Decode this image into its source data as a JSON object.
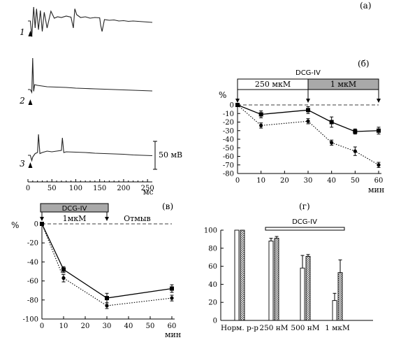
{
  "chart_data": [
    {
      "id": "a",
      "panel_label": "(а)",
      "type": "line",
      "xlabel": "мс",
      "xticks": [
        0,
        50,
        100,
        150,
        200,
        250
      ],
      "scale_bar_label": "50 мВ",
      "traces": [
        {
          "name": "1",
          "x": [
            0,
            5,
            8,
            12,
            15,
            18,
            22,
            26,
            30,
            34,
            40,
            48,
            55,
            62,
            70,
            80,
            90,
            95,
            98,
            102,
            110,
            120,
            130,
            140,
            150,
            152,
            155,
            160,
            170,
            180,
            190,
            200,
            210,
            220,
            230,
            240,
            250,
            260
          ],
          "y": [
            0,
            0,
            -45,
            40,
            -20,
            35,
            -25,
            30,
            -30,
            25,
            -20,
            28,
            8,
            12,
            10,
            14,
            11,
            -20,
            35,
            18,
            10,
            12,
            8,
            10,
            9,
            -12,
            -30,
            4,
            2,
            3,
            0,
            1,
            -1,
            0,
            -1,
            -2,
            -3,
            -4
          ]
        },
        {
          "name": "2",
          "x": [
            0,
            5,
            8,
            10,
            12,
            14,
            20,
            30,
            40,
            60,
            80,
            100,
            120,
            140,
            160,
            180,
            200,
            220,
            240,
            260
          ],
          "y": [
            0,
            0,
            -8,
            90,
            -5,
            14,
            12,
            10,
            8,
            7,
            6,
            4,
            3,
            2,
            1,
            0,
            -1,
            -2,
            -3,
            -4
          ]
        },
        {
          "name": "3",
          "x": [
            0,
            5,
            8,
            10,
            15,
            20,
            22,
            25,
            30,
            40,
            50,
            60,
            70,
            72,
            75,
            80,
            100,
            120,
            140,
            160,
            180,
            200,
            220,
            240,
            260
          ],
          "y": [
            0,
            0,
            -15,
            -5,
            5,
            8,
            60,
            5,
            8,
            12,
            10,
            12,
            14,
            50,
            8,
            10,
            9,
            8,
            6,
            5,
            4,
            3,
            1,
            0,
            -1
          ]
        }
      ]
    },
    {
      "id": "b",
      "panel_label": "(б)",
      "type": "line",
      "ylabel": "%",
      "xlabel": "мин",
      "xlim": [
        0,
        60
      ],
      "ylim": [
        -80,
        0
      ],
      "xticks": [
        0,
        10,
        20,
        30,
        40,
        50,
        60
      ],
      "yticks": [
        0,
        -10,
        -20,
        -30,
        -40,
        -50,
        -60,
        -70,
        -80
      ],
      "drug_label": "DCG-IV",
      "bar_labels": [
        "250 мкМ",
        "1 мкМ"
      ],
      "bar_ranges": [
        [
          0,
          30
        ],
        [
          30,
          60
        ]
      ],
      "x": [
        0,
        10,
        30,
        40,
        50,
        60
      ],
      "series": [
        {
          "marker": "square",
          "line": "solid",
          "values": [
            0,
            -11,
            -6,
            -20,
            -31,
            -30
          ],
          "errors": [
            1,
            4,
            4,
            6,
            3,
            4
          ]
        },
        {
          "marker": "circle",
          "line": "dotted",
          "values": [
            0,
            -24,
            -19,
            -44,
            -54,
            -70
          ],
          "errors": [
            1,
            3,
            3,
            3,
            5,
            3
          ]
        }
      ]
    },
    {
      "id": "v",
      "panel_label": "(в)",
      "type": "line",
      "ylabel": "%",
      "xlabel": "мин",
      "xlim": [
        0,
        60
      ],
      "ylim": [
        -100,
        0
      ],
      "xticks": [
        0,
        10,
        20,
        30,
        40,
        50,
        60
      ],
      "yticks": [
        0,
        -20,
        -40,
        -60,
        -80,
        -100
      ],
      "drug_label": "DCG-IV",
      "conc_label": "1мкМ",
      "washout_label": "Отмыв",
      "drug_range": [
        0,
        30
      ],
      "x": [
        0,
        10,
        30,
        60
      ],
      "series": [
        {
          "marker": "square",
          "line": "solid",
          "values": [
            0,
            -48,
            -78,
            -68
          ],
          "errors": [
            1,
            3,
            5,
            4
          ]
        },
        {
          "marker": "circle",
          "line": "dotted",
          "values": [
            0,
            -57,
            -86,
            -78
          ],
          "errors": [
            1,
            4,
            3,
            3
          ]
        }
      ]
    },
    {
      "id": "g",
      "panel_label": "(г)",
      "type": "bar",
      "ylim": [
        0,
        100
      ],
      "yticks": [
        0,
        20,
        40,
        60,
        80,
        100
      ],
      "categories": [
        "Норм. р-р",
        "250 нМ",
        "500 нМ",
        "1 мкМ"
      ],
      "drug_label": "DCG-IV",
      "series": [
        {
          "fill": "white",
          "values": [
            100,
            88,
            58,
            22
          ],
          "errors": [
            0,
            3,
            14,
            8
          ]
        },
        {
          "fill": "hatched",
          "values": [
            100,
            91,
            71,
            53
          ],
          "errors": [
            0,
            2,
            2,
            14
          ]
        }
      ]
    }
  ]
}
